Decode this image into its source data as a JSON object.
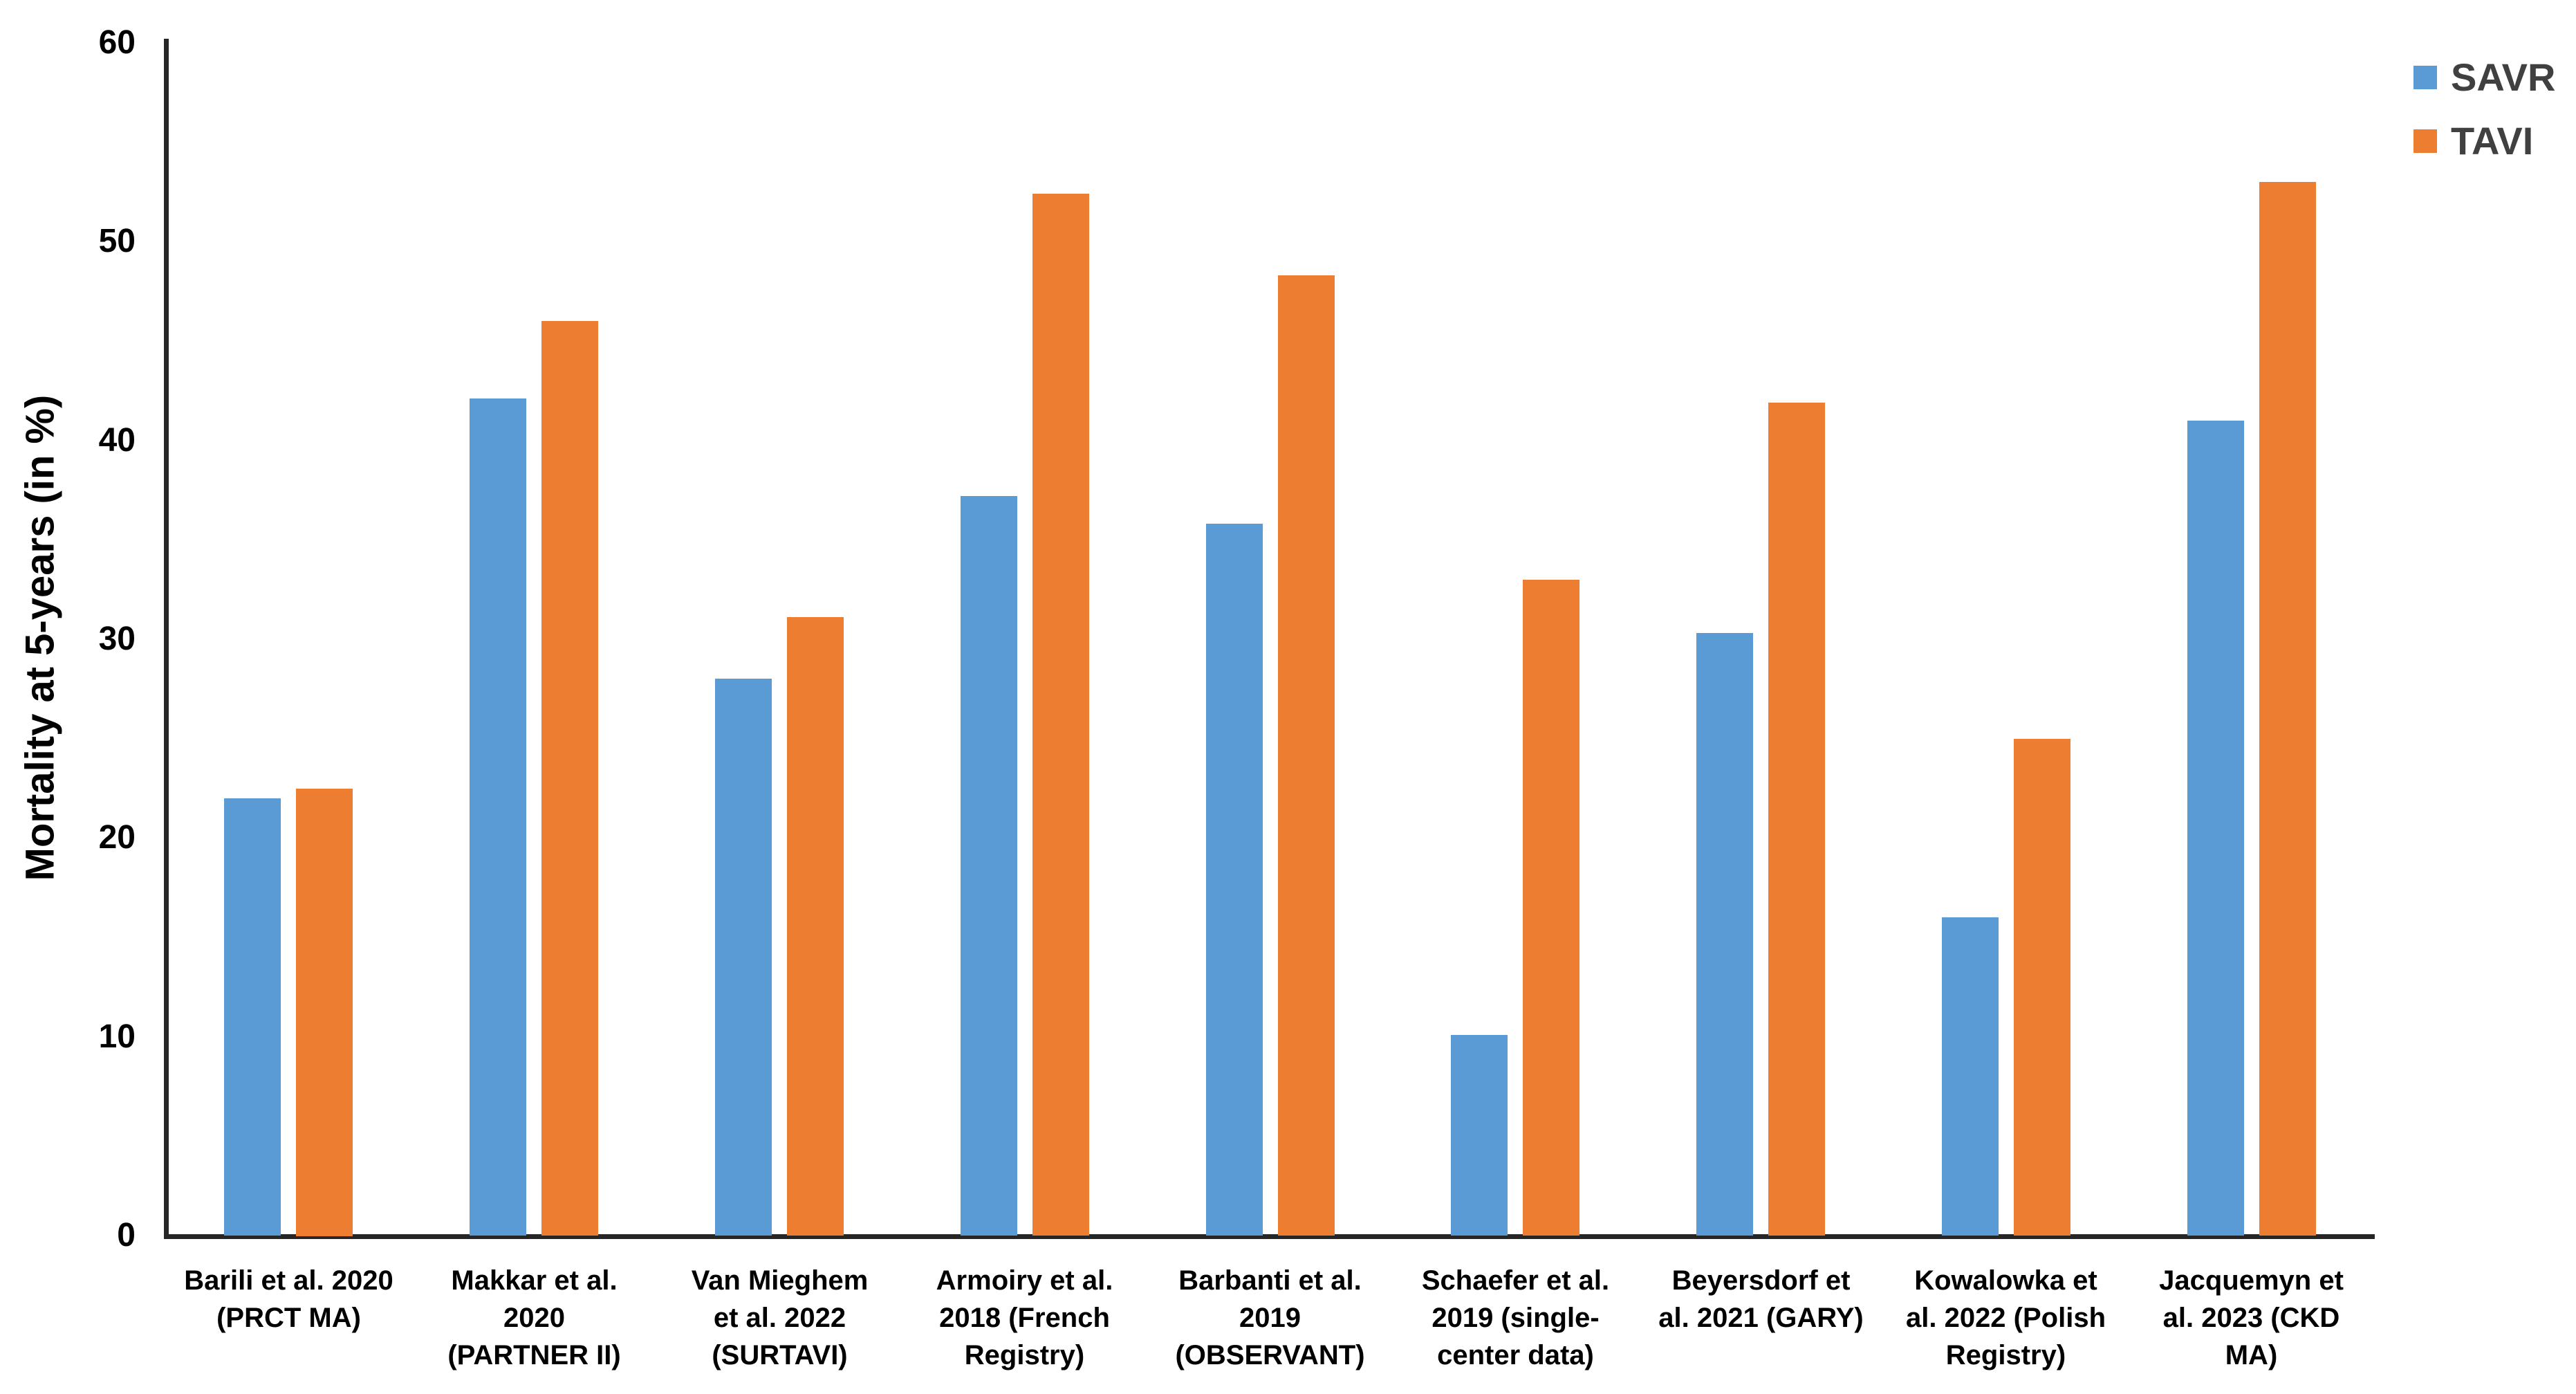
{
  "chart_data": {
    "type": "bar",
    "title": "",
    "xlabel": "",
    "ylabel": "Mortality at 5-years (in %)",
    "ylim": [
      0,
      60
    ],
    "yticks": [
      0,
      10,
      20,
      30,
      40,
      50,
      60
    ],
    "grid": false,
    "legend_position": "top-right",
    "categories": [
      "Barili et al. 2020\n(PRCT MA)",
      "Makkar et al.\n2020\n(PARTNER II)",
      "Van Mieghem\net al. 2022\n(SURTAVI)",
      "Armoiry et al.\n2018 (French\nRegistry)",
      "Barbanti et al.\n2019\n(OBSERVANT)",
      "Schaefer et al.\n2019 (single-\ncenter data)",
      "Beyersdorf et\nal. 2021 (GARY)",
      "Kowalowka et\nal. 2022 (Polish\nRegistry)",
      "Jacquemyn et\nal. 2023 (CKD\nMA)"
    ],
    "series": [
      {
        "name": "SAVR",
        "color": "#5B9BD5",
        "values": [
          22,
          42.1,
          28,
          37.2,
          35.8,
          10.1,
          30.3,
          16,
          41
        ]
      },
      {
        "name": "TAVI",
        "color": "#ED7D31",
        "values": [
          22.5,
          46,
          31.1,
          52.4,
          48.3,
          33,
          41.9,
          25,
          53
        ]
      }
    ]
  },
  "colors": {
    "axis": "#262626",
    "tick_text": "#000000",
    "category_text": "#000000",
    "legend_text": "#404040",
    "background": "#ffffff"
  }
}
